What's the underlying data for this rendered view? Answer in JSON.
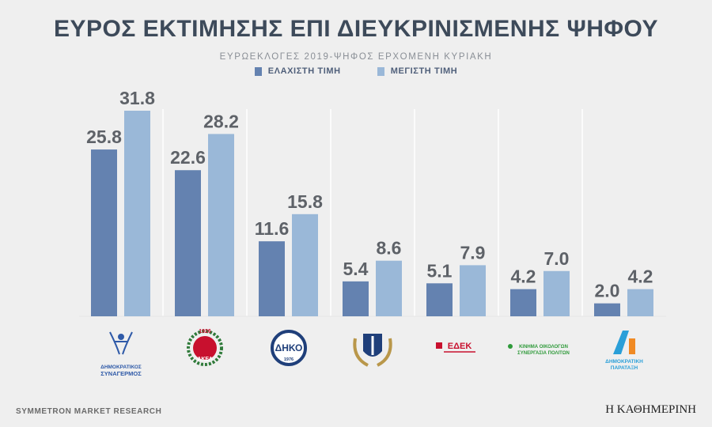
{
  "title": "ΕΥΡΟΣ ΕΚΤΙΜΗΣΗΣ ΕΠΙ ΔΙΕΥΚΡΙΝΙΣΜΕΝΗΣ ΨΗΦΟΥ",
  "subtitle": "ΕΥΡΩΕΚΛΟΓΕΣ 2019-ΨΗΦΟΣ ΕΡΧΟΜΕΝΗ ΚΥΡΙΑΚΗ",
  "colors": {
    "min": "#6482b0",
    "max": "#9ab8d8",
    "background": "#efefef",
    "label": "#5e6268"
  },
  "chart_data": {
    "type": "bar",
    "title": "ΕΥΡΟΣ ΕΚΤΙΜΗΣΗΣ ΕΠΙ ΔΙΕΥΚΡΙΝΙΣΜΕΝΗΣ ΨΗΦΟΥ",
    "subtitle": "ΕΥΡΩΕΚΛΟΓΕΣ 2019-ΨΗΦΟΣ ΕΡΧΟΜΕΝΗ ΚΥΡΙΑΚΗ",
    "categories": [
      "ΔΗΣΥ",
      "ΑΚΕΛ",
      "ΔΗΚΟ",
      "ΕΛΑΜ",
      "ΕΔΕΚ",
      "ΚΙΝΗΜΑ ΟΙΚΟΛΟΓΩΝ",
      "ΔΗΠΑ"
    ],
    "series": [
      {
        "name": "ΕΛΑΧΙΣΤΗ ΤΙΜΗ",
        "values": [
          25.8,
          22.6,
          11.6,
          5.4,
          5.1,
          4.2,
          2.0
        ]
      },
      {
        "name": "ΜΕΓΙΣΤΗ ΤΙΜΗ",
        "values": [
          31.8,
          28.2,
          15.8,
          8.6,
          7.9,
          7.0,
          4.2
        ]
      }
    ],
    "ylim": [
      0,
      31.8
    ],
    "grid": false,
    "legend": "top-center",
    "xlabel": "",
    "ylabel": ""
  },
  "logos": [
    {
      "icon": "disy-logo-icon",
      "text_lines": [
        "ΔΗΜΟΚΡΑΤΙΚΟΣ",
        "ΣΥΝΑΓΕΡΜΟΣ"
      ]
    },
    {
      "icon": "akel-logo-icon",
      "text_lines": [
        "1926",
        "ΑΚΕΛ"
      ]
    },
    {
      "icon": "diko-logo-icon",
      "text_lines": [
        "ΔΗΚΟ",
        "1976"
      ]
    },
    {
      "icon": "elam-logo-icon",
      "text_lines": []
    },
    {
      "icon": "edek-logo-icon",
      "text_lines": [
        "ΕΔΕΚ"
      ]
    },
    {
      "icon": "ecologists-logo-icon",
      "text_lines": [
        "ΚΙΝΗΜΑ ΟΙΚΟΛΟΓΩΝ",
        "ΣΥΝΕΡΓΑΣΙΑ ΠΟΛΙΤΩΝ"
      ]
    },
    {
      "icon": "dipa-logo-icon",
      "text_lines": [
        "ΔΗΜΟΚΡΑΤΙΚΗ",
        "ΠΑΡΑΤΑΞΗ"
      ]
    }
  ],
  "footer": {
    "source": "SYMMETRON MARKET RESEARCH",
    "brand": "Η ΚΑΘΗΜΕΡΙΝΗ"
  }
}
